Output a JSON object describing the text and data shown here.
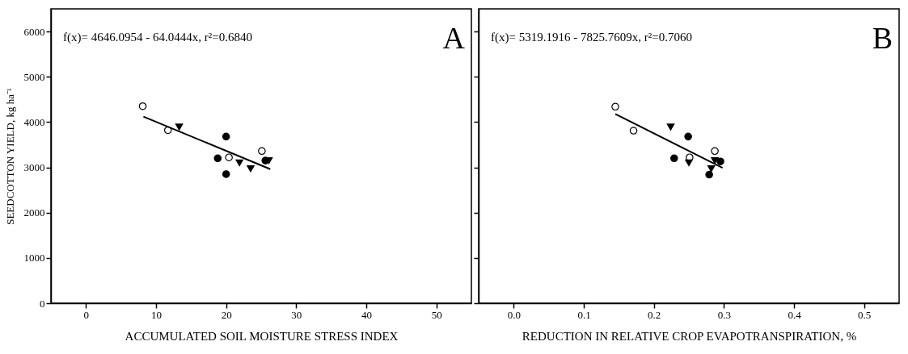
{
  "chart_data": [
    {
      "type": "scatter",
      "xlabel": "ACCUMULATED SOIL MOISTURE STRESS INDEX",
      "ylabel": "SEEDCOTTON YIELD, kg ha⁻¹",
      "xlim": [
        -5,
        55
      ],
      "xticks": [
        0,
        10,
        20,
        30,
        40,
        50
      ],
      "ylim": [
        0,
        6500
      ],
      "yticks": [
        0,
        1000,
        2000,
        3000,
        4000,
        5000,
        6000
      ],
      "grid": false,
      "annotations": [
        "f(x)= 4646.0954 - 64.0444x, r²=0.6840",
        "A"
      ],
      "series": [
        {
          "type": "scatter",
          "marker": "circle",
          "color": "#000000",
          "x": [
            18.8,
            20.0,
            20.0,
            25.6
          ],
          "values": [
            3200,
            3680,
            2850,
            3150
          ]
        },
        {
          "type": "scatter",
          "marker": "circle",
          "color": "#ffffff",
          "x": [
            8.1,
            11.7,
            20.4,
            25.1
          ],
          "values": [
            4350,
            3820,
            3220,
            3360
          ]
        },
        {
          "type": "scatter",
          "marker": "triangle",
          "color": "#000000",
          "x": [
            13.3,
            21.9,
            23.5,
            26.1
          ],
          "values": [
            3890,
            3100,
            2970,
            3150
          ]
        },
        {
          "type": "line",
          "marker": "none",
          "color": "#000000",
          "x": [
            8.2,
            26.3
          ],
          "values": [
            4120,
            2960
          ]
        }
      ]
    },
    {
      "type": "scatter",
      "xlabel": "REDUCTION IN RELATIVE CROP EVAPOTRANSPIRATION, %",
      "xlim": [
        -0.05,
        0.55
      ],
      "xticks": [
        {
          "value": 0,
          "label": "0.0"
        },
        0.1,
        0.2,
        0.3,
        0.4,
        0.5
      ],
      "ylim": [
        0,
        6500
      ],
      "yticks": [
        0,
        1000,
        2000,
        3000,
        4000,
        5000,
        6000
      ],
      "tick_labels": "x",
      "grid": false,
      "annotations": [
        "f(x)= 5319.1916 - 7825.7609x, r²=0.7060",
        "B"
      ],
      "series": [
        {
          "type": "scatter",
          "marker": "circle",
          "color": "#000000",
          "x": [
            0.229,
            0.249,
            0.279,
            0.295
          ],
          "values": [
            3200,
            3680,
            2840,
            3130
          ]
        },
        {
          "type": "scatter",
          "marker": "circle",
          "color": "#ffffff",
          "x": [
            0.145,
            0.171,
            0.251,
            0.287
          ],
          "values": [
            4340,
            3810,
            3220,
            3360
          ]
        },
        {
          "type": "scatter",
          "marker": "triangle",
          "color": "#000000",
          "x": [
            0.224,
            0.25,
            0.282,
            0.287
          ],
          "values": [
            3890,
            3100,
            2970,
            3150
          ]
        },
        {
          "type": "line",
          "marker": "none",
          "color": "#000000",
          "x": [
            0.145,
            0.298
          ],
          "values": [
            4180,
            2990
          ]
        }
      ]
    }
  ]
}
